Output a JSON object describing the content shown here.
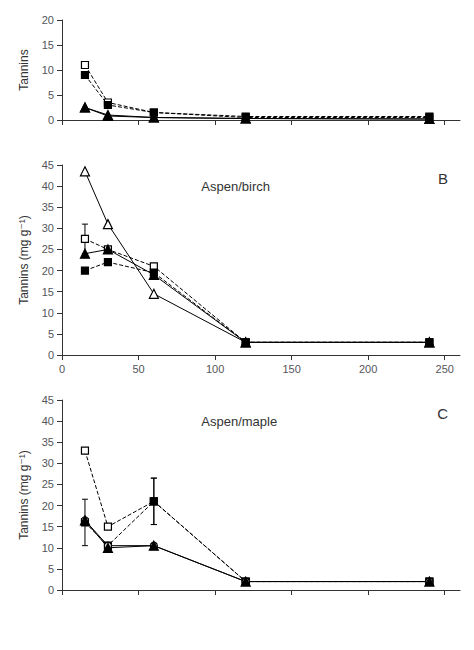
{
  "chart_data": [
    {
      "type": "line",
      "ylabel": "Tannins",
      "grid": false,
      "tick_labels": "y",
      "x": [
        15,
        30,
        60,
        120,
        240
      ],
      "xlim": [
        0,
        260
      ],
      "xticks": [
        0,
        50,
        100,
        150,
        200,
        250
      ],
      "ylim": [
        0,
        20
      ],
      "yticks": [
        0,
        5,
        10,
        15,
        20
      ],
      "series": [
        {
          "marker": "open_square",
          "line_style": "dashed",
          "color": "black",
          "values": [
            11.0,
            3.5,
            1.5,
            0.5,
            0.5
          ]
        },
        {
          "marker": "square",
          "line_style": "dashed",
          "color": "black",
          "values": [
            9.0,
            3.0,
            1.5,
            0.7,
            0.7
          ]
        },
        {
          "marker": "open_triangle",
          "line_style": "solid",
          "color": "black",
          "values": [
            2.5,
            1.0,
            0.5,
            0.3,
            0.2
          ]
        },
        {
          "marker": "triangle",
          "line_style": "solid",
          "color": "black",
          "values": [
            2.5,
            0.8,
            0.5,
            0.3,
            0.2
          ]
        }
      ]
    },
    {
      "type": "line",
      "ylabel": "Tannins (mg g⁻¹)",
      "grid": false,
      "annotations": [
        "Aspen/birch",
        "B"
      ],
      "x": [
        15,
        30,
        60,
        120,
        240
      ],
      "xlim": [
        0,
        260
      ],
      "xticks": [
        0,
        50,
        100,
        150,
        200,
        250
      ],
      "ylim": [
        0,
        45
      ],
      "yticks": [
        0,
        5,
        10,
        15,
        20,
        25,
        30,
        35,
        40,
        45
      ],
      "series": [
        {
          "marker": "open_square",
          "line_style": "dashed",
          "color": "black",
          "values": [
            27.5,
            25.0,
            21.0,
            3.0,
            3.0
          ],
          "yerr": [
            3.5,
            0,
            0,
            0,
            0
          ]
        },
        {
          "marker": "square",
          "line_style": "dashed",
          "color": "black",
          "values": [
            20.0,
            22.0,
            19.5,
            3.0,
            3.0
          ]
        },
        {
          "marker": "open_triangle",
          "line_style": "solid",
          "color": "black",
          "values": [
            43.5,
            31.0,
            14.5,
            3.0,
            3.0
          ]
        },
        {
          "marker": "triangle",
          "line_style": "solid",
          "color": "black",
          "values": [
            24.0,
            25.0,
            19.0,
            3.0,
            3.0
          ]
        }
      ]
    },
    {
      "type": "line",
      "ylabel": "Tannins (mg g⁻¹)",
      "grid": false,
      "tick_labels": "y",
      "annotations": [
        "Aspen/maple",
        "C"
      ],
      "x": [
        15,
        30,
        60,
        120,
        240
      ],
      "xlim": [
        0,
        260
      ],
      "xticks": [
        0,
        50,
        100,
        150,
        200,
        250
      ],
      "ylim": [
        0,
        45
      ],
      "yticks": [
        0,
        5,
        10,
        15,
        20,
        25,
        30,
        35,
        40,
        45
      ],
      "series": [
        {
          "marker": "open_square",
          "line_style": "dashed",
          "color": "black",
          "values": [
            33.0,
            15.0,
            21.0,
            2.0,
            2.0
          ],
          "yerr": [
            0,
            0,
            5.5,
            0,
            0
          ]
        },
        {
          "marker": "square",
          "line_style": "dashed",
          "color": "black",
          "values": [
            16.0,
            10.5,
            21.0,
            2.0,
            2.0
          ],
          "yerr": [
            5.5,
            0,
            5.5,
            0,
            0
          ]
        },
        {
          "marker": "open_circle",
          "line_style": "solid",
          "color": "black",
          "values": [
            16.5,
            10.5,
            10.5,
            2.0,
            2.0
          ]
        },
        {
          "marker": "triangle",
          "line_style": "solid",
          "color": "black",
          "values": [
            16.5,
            10.0,
            10.5,
            2.0,
            2.0
          ]
        }
      ]
    }
  ]
}
